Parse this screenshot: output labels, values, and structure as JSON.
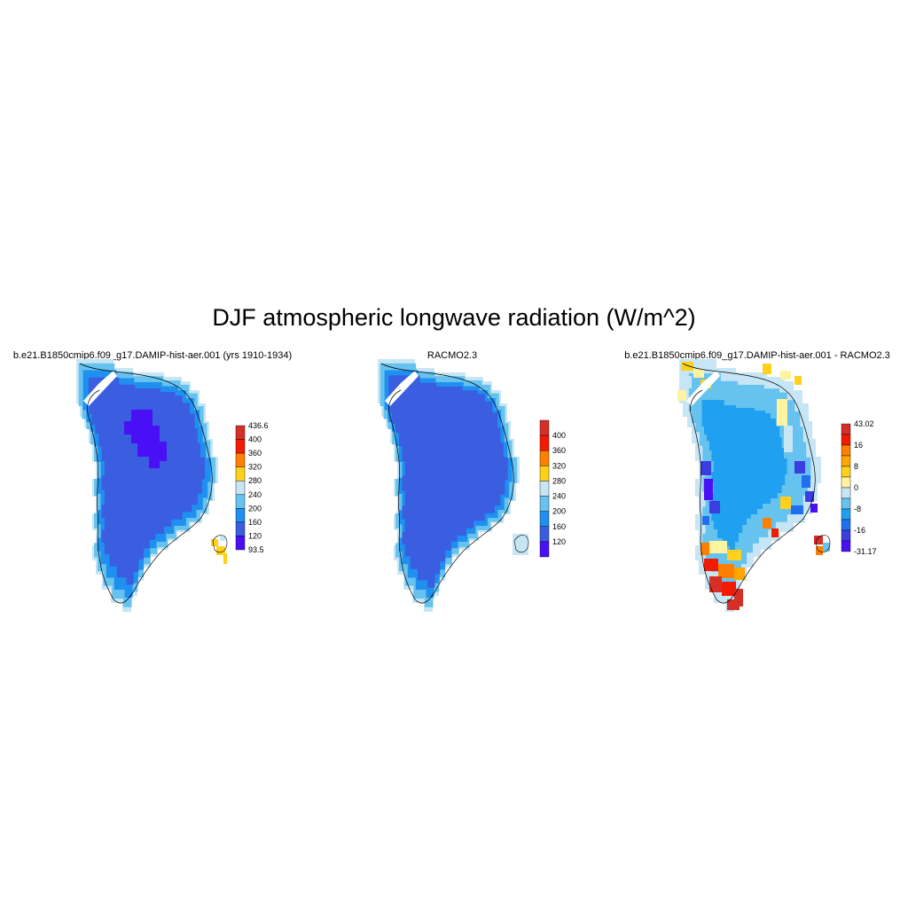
{
  "title": "DJF atmospheric longwave radiation (W/m^2)",
  "panels": [
    {
      "title": "b.e21.B1850cmip6.f09_g17.DAMIP-hist-aer.001 (yrs 1910-1934)",
      "colorbar": {
        "labels": [
          "436.6",
          "400",
          "360",
          "320",
          "280",
          "240",
          "200",
          "160",
          "120",
          "93.5"
        ],
        "colors": [
          "#d62f27",
          "#f21a00",
          "#ff8000",
          "#ffd11a",
          "#c6e6f6",
          "#66c2ee",
          "#1f8ff0",
          "#3b5de0",
          "#4a10f5"
        ]
      }
    },
    {
      "title": "RACMO2.3",
      "colorbar": {
        "labels": [
          "400",
          "360",
          "320",
          "280",
          "240",
          "200",
          "160",
          "120"
        ],
        "colors": [
          "#d62f27",
          "#f21a00",
          "#ff8000",
          "#ffd11a",
          "#c6e6f6",
          "#66c2ee",
          "#1f8ff0",
          "#3b5de0",
          "#4a10f5"
        ]
      }
    },
    {
      "title": "b.e21.B1850cmip6.f09_g17.DAMIP-hist-aer.001 - RACMO2.3",
      "colorbar": {
        "labels": [
          "43.02",
          "16",
          "8",
          "0",
          "-8",
          "-16",
          "-31.17"
        ],
        "colors": [
          "#d62f27",
          "#f21a00",
          "#ff8000",
          "#ffa600",
          "#ffd11a",
          "#fff3a0",
          "#c6e6f6",
          "#66c2ee",
          "#1fa0f0",
          "#1f6ff0",
          "#3b3de0",
          "#4a10f5"
        ]
      }
    }
  ]
}
